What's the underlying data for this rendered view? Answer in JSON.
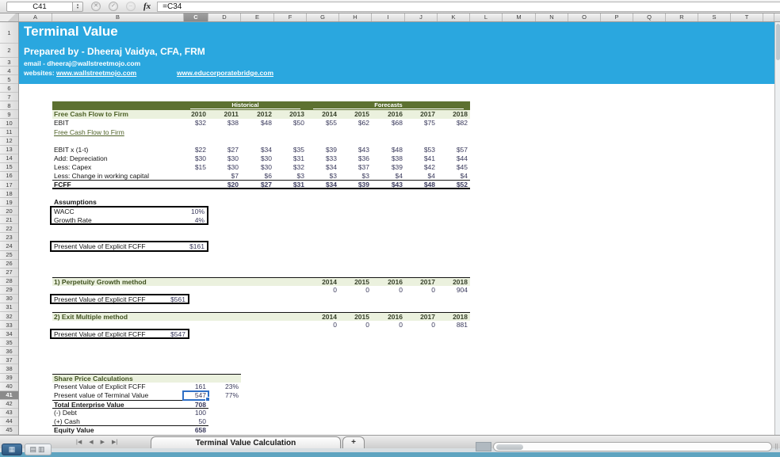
{
  "colors": {
    "banner_blue": "#2AA7DF",
    "olive_band": "#5D7131",
    "light_green_band": "#EBF1DE",
    "dark_green_text": "#4F6228",
    "number_navy": "#3A3A5C",
    "selection_blue": "#2F6FC6"
  },
  "formula_bar": {
    "cell_reference": "C41",
    "formula": "=C34",
    "fx_label": "fx"
  },
  "grid": {
    "columns": [
      "A",
      "B",
      "C",
      "D",
      "E",
      "F",
      "G",
      "H",
      "I",
      "J",
      "K",
      "L",
      "M",
      "N",
      "O",
      "P",
      "Q",
      "R",
      "S",
      "T"
    ],
    "selected_column": "C",
    "row_count": 45,
    "selected_row": 41
  },
  "banner": {
    "title": "Terminal Value",
    "prepared_by": "Prepared by - Dheeraj Vaidya, CFA, FRM",
    "email": "email - dheeraj@wallstreetmojo.com",
    "websites_label": "websites:",
    "website1": "www.wallstreetmojo.com",
    "website2": "www.educorporatebridge.com"
  },
  "fcff_table": {
    "group_headers": [
      "Historical",
      "Forecasts"
    ],
    "header_label": "Free Cash Flow to Firm",
    "years": [
      "2010",
      "2011",
      "2012",
      "2013",
      "2014",
      "2015",
      "2016",
      "2017",
      "2018"
    ],
    "rows": [
      {
        "label": "EBIT",
        "values": [
          "$32",
          "$38",
          "$48",
          "$50",
          "$55",
          "$62",
          "$68",
          "$75",
          "$82"
        ]
      },
      {
        "label": "Free Cash Flow to Firm",
        "link": true,
        "values": [
          "",
          "",
          "",
          "",
          "",
          "",
          "",
          "",
          ""
        ]
      },
      {
        "label": "",
        "spacer": true,
        "values": [
          "",
          "",
          "",
          "",
          "",
          "",
          "",
          "",
          ""
        ]
      },
      {
        "label": "EBIT x (1-t)",
        "values": [
          "$22",
          "$27",
          "$34",
          "$35",
          "$39",
          "$43",
          "$48",
          "$53",
          "$57"
        ]
      },
      {
        "label": "Add: Depreciation",
        "values": [
          "$30",
          "$30",
          "$30",
          "$31",
          "$33",
          "$36",
          "$38",
          "$41",
          "$44"
        ]
      },
      {
        "label": "Less: Capex",
        "values": [
          "$15",
          "$30",
          "$30",
          "$32",
          "$34",
          "$37",
          "$39",
          "$42",
          "$45"
        ]
      },
      {
        "label": "Less: Change in working capital",
        "underline": true,
        "values": [
          "",
          "$7",
          "$6",
          "$3",
          "$3",
          "$3",
          "$4",
          "$4",
          "$4"
        ]
      },
      {
        "label": "FCFF",
        "total": true,
        "values": [
          "",
          "$20",
          "$27",
          "$31",
          "$34",
          "$39",
          "$43",
          "$48",
          "$52"
        ]
      }
    ]
  },
  "assumptions": {
    "title": "Assumptions",
    "items": [
      {
        "label": "WACC",
        "value": "10%"
      },
      {
        "label": "Growth Rate",
        "value": "4%"
      }
    ]
  },
  "pv_explicit": {
    "label": "Present Value of Explicit FCFF",
    "value": "$161"
  },
  "methods": [
    {
      "title": "1) Perpetuity Growth method",
      "years": [
        "2014",
        "2015",
        "2016",
        "2017",
        "2018"
      ],
      "values": [
        "0",
        "0",
        "0",
        "0",
        "904"
      ],
      "pv_label": "Present Value of Explicit FCFF",
      "pv_value": "$561"
    },
    {
      "title": "2) Exit Multiple method",
      "years": [
        "2014",
        "2015",
        "2016",
        "2017",
        "2018"
      ],
      "values": [
        "0",
        "0",
        "0",
        "0",
        "881"
      ],
      "pv_label": "Present Value of Explicit FCFF",
      "pv_value": "$547"
    }
  ],
  "share_price": {
    "title": "Share Price Calculations",
    "rows": [
      {
        "label": "Present Value of Explicit FCFF",
        "value": "161",
        "pct": "23%"
      },
      {
        "label": "Present value of Terminal Value",
        "value": "547",
        "pct": "77%",
        "selected": true
      },
      {
        "label": "Total Enterprise Value",
        "value": "708",
        "bold": true,
        "topline": true,
        "bottomline": true
      },
      {
        "label": "(-) Debt",
        "value": "100"
      },
      {
        "label": "(+) Cash",
        "value": "50",
        "bottomline": true
      },
      {
        "label": "Equity Value",
        "value": "658",
        "bold": true
      }
    ]
  },
  "sheet_tabs": {
    "active_tab": "Terminal Value Calculation",
    "add_tab": "+"
  },
  "icons": {
    "cancel": "✕",
    "accept": "✓",
    "collapse": "–",
    "stepper_up": "▴",
    "stepper_down": "▾",
    "nav_first": "|◀",
    "nav_prev": "◀",
    "nav_next": "▶",
    "nav_last": "▶|",
    "normal_view": "▦",
    "page_view_a": "▤",
    "page_view_b": "▥",
    "resize_handle": "||"
  }
}
